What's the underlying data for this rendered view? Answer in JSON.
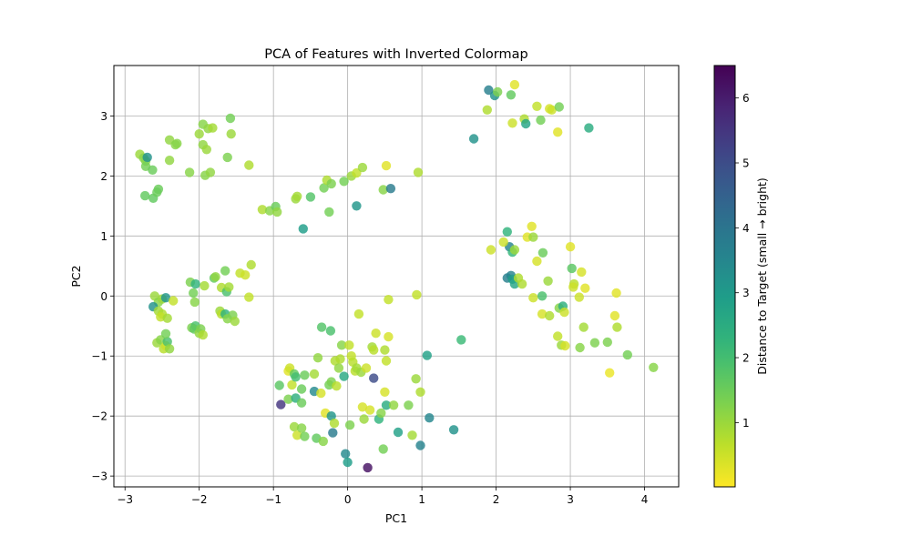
{
  "chart_data": {
    "type": "scatter",
    "title": "PCA of Features with Inverted Colormap",
    "xlabel": "PC1",
    "ylabel": "PC2",
    "xlim": [
      -3.15,
      4.46
    ],
    "ylim": [
      -3.18,
      3.84
    ],
    "xticks": [
      -3,
      -2,
      -1,
      0,
      1,
      2,
      3,
      4
    ],
    "xtick_labels": [
      "−3",
      "−2",
      "−1",
      "0",
      "1",
      "2",
      "3",
      "4"
    ],
    "yticks": [
      -3,
      -2,
      -1,
      0,
      1,
      2,
      3
    ],
    "ytick_labels": [
      "−3",
      "−2",
      "−1",
      "0",
      "1",
      "2",
      "3"
    ],
    "grid": true,
    "colormap": "viridis_r",
    "colorbar": {
      "label": "Distance to Target (small → bright)",
      "range": [
        0.01,
        6.5
      ],
      "ticks": [
        1,
        2,
        3,
        4,
        5,
        6
      ],
      "tick_labels": [
        "1",
        "2",
        "3",
        "4",
        "5",
        "6"
      ]
    },
    "points": [
      [
        -2.8,
        2.36,
        1.0
      ],
      [
        -2.75,
        2.3,
        1.2
      ],
      [
        -2.72,
        2.25,
        1.2
      ],
      [
        -2.7,
        2.31,
        3.2
      ],
      [
        -2.72,
        2.16,
        1.4
      ],
      [
        -2.63,
        2.1,
        1.5
      ],
      [
        -2.73,
        1.67,
        1.6
      ],
      [
        -2.62,
        1.63,
        1.6
      ],
      [
        -2.57,
        1.73,
        1.5
      ],
      [
        -2.55,
        1.78,
        1.5
      ],
      [
        -2.4,
        2.6,
        1.1
      ],
      [
        -2.32,
        2.52,
        1.2
      ],
      [
        -2.3,
        2.54,
        1.2
      ],
      [
        -2.4,
        2.26,
        1.1
      ],
      [
        -2.13,
        2.06,
        1.2
      ],
      [
        -2.0,
        2.7,
        1.0
      ],
      [
        -1.95,
        2.86,
        1.2
      ],
      [
        -1.88,
        2.79,
        1.1
      ],
      [
        -1.82,
        2.8,
        0.9
      ],
      [
        -1.95,
        2.52,
        1.1
      ],
      [
        -1.9,
        2.44,
        1.0
      ],
      [
        -1.92,
        2.01,
        1.2
      ],
      [
        -1.85,
        2.06,
        1.1
      ],
      [
        -1.58,
        2.96,
        1.4
      ],
      [
        -1.57,
        2.7,
        1.0
      ],
      [
        -1.62,
        2.31,
        1.3
      ],
      [
        -1.33,
        2.18,
        0.8
      ],
      [
        -2.6,
        0.0,
        1.0
      ],
      [
        -2.55,
        -0.1,
        1.2
      ],
      [
        -2.62,
        -0.18,
        3.2
      ],
      [
        -2.5,
        -0.05,
        1.0
      ],
      [
        -2.45,
        -0.03,
        3.1
      ],
      [
        -2.55,
        -0.25,
        0.9
      ],
      [
        -2.5,
        -0.3,
        0.8
      ],
      [
        -2.52,
        -0.35,
        0.6
      ],
      [
        -2.43,
        -0.37,
        0.9
      ],
      [
        -2.35,
        -0.08,
        0.6
      ],
      [
        -2.57,
        -0.78,
        1.0
      ],
      [
        -2.52,
        -0.73,
        1.2
      ],
      [
        -2.48,
        -0.88,
        0.7
      ],
      [
        -2.45,
        -0.83,
        0.5
      ],
      [
        -2.43,
        -0.76,
        1.9
      ],
      [
        -2.4,
        -0.88,
        1.1
      ],
      [
        -2.45,
        -0.63,
        1.4
      ],
      [
        -2.12,
        0.23,
        1.3
      ],
      [
        -2.05,
        0.2,
        2.3
      ],
      [
        -2.08,
        0.05,
        1.4
      ],
      [
        -2.06,
        -0.1,
        1.2
      ],
      [
        -2.1,
        -0.53,
        1.3
      ],
      [
        -2.05,
        -0.5,
        1.9
      ],
      [
        -2.07,
        -0.55,
        1.6
      ],
      [
        -2.0,
        -0.62,
        1.1
      ],
      [
        -1.98,
        -0.55,
        1.3
      ],
      [
        -1.95,
        -0.65,
        0.8
      ],
      [
        -1.93,
        0.17,
        0.9
      ],
      [
        -1.8,
        0.3,
        1.6
      ],
      [
        -1.78,
        0.32,
        1.1
      ],
      [
        -1.7,
        0.14,
        0.8
      ],
      [
        -1.65,
        0.42,
        1.4
      ],
      [
        -1.63,
        0.07,
        1.9
      ],
      [
        -1.6,
        0.15,
        0.9
      ],
      [
        -1.72,
        -0.25,
        1.0
      ],
      [
        -1.7,
        -0.3,
        0.7
      ],
      [
        -1.65,
        -0.3,
        2.3
      ],
      [
        -1.62,
        -0.38,
        1.2
      ],
      [
        -1.55,
        -0.32,
        1.3
      ],
      [
        -1.52,
        -0.42,
        1.0
      ],
      [
        -1.45,
        0.38,
        0.6
      ],
      [
        -1.38,
        0.35,
        0.5
      ],
      [
        -1.3,
        0.52,
        0.8
      ],
      [
        -1.33,
        -0.02,
        0.6
      ],
      [
        -1.15,
        1.44,
        0.8
      ],
      [
        -1.05,
        1.42,
        1.2
      ],
      [
        -0.97,
        1.49,
        1.5
      ],
      [
        -0.95,
        1.4,
        1.1
      ],
      [
        -0.7,
        1.62,
        1.0
      ],
      [
        -0.68,
        1.66,
        0.9
      ],
      [
        -0.5,
        1.65,
        1.8
      ],
      [
        -0.6,
        1.12,
        2.9
      ],
      [
        -0.25,
        1.4,
        1.4
      ],
      [
        -0.32,
        1.8,
        1.4
      ],
      [
        -0.28,
        1.93,
        0.8
      ],
      [
        -0.22,
        1.87,
        1.3
      ],
      [
        -0.05,
        1.91,
        1.4
      ],
      [
        0.05,
        2.0,
        1.0
      ],
      [
        0.12,
        2.05,
        0.6
      ],
      [
        0.2,
        2.14,
        1.0
      ],
      [
        0.12,
        1.5,
        3.1
      ],
      [
        0.48,
        1.77,
        1.2
      ],
      [
        0.58,
        1.79,
        3.8
      ],
      [
        0.52,
        2.17,
        0.3
      ],
      [
        0.95,
        2.06,
        0.8
      ],
      [
        1.9,
        3.43,
        3.7
      ],
      [
        1.98,
        3.34,
        3.2
      ],
      [
        2.02,
        3.4,
        1.3
      ],
      [
        2.2,
        3.35,
        1.6
      ],
      [
        2.25,
        3.52,
        0.3
      ],
      [
        2.22,
        2.88,
        0.5
      ],
      [
        1.88,
        3.1,
        0.8
      ],
      [
        1.7,
        2.62,
        3.2
      ],
      [
        2.38,
        2.95,
        0.8
      ],
      [
        2.4,
        2.87,
        2.7
      ],
      [
        2.55,
        3.16,
        0.6
      ],
      [
        2.6,
        2.93,
        1.4
      ],
      [
        2.72,
        3.12,
        0.4
      ],
      [
        2.75,
        3.1,
        0.5
      ],
      [
        2.85,
        3.15,
        1.4
      ],
      [
        2.83,
        2.73,
        0.3
      ],
      [
        3.25,
        2.8,
        2.5
      ],
      [
        2.15,
        1.07,
        2.3
      ],
      [
        2.18,
        0.82,
        3.6
      ],
      [
        1.93,
        0.77,
        0.5
      ],
      [
        2.1,
        0.9,
        0.5
      ],
      [
        2.22,
        0.73,
        2.2
      ],
      [
        2.25,
        0.77,
        1.0
      ],
      [
        2.15,
        0.3,
        3.7
      ],
      [
        2.2,
        0.34,
        3.6
      ],
      [
        2.22,
        0.28,
        2.9
      ],
      [
        2.25,
        0.2,
        2.7
      ],
      [
        2.3,
        0.3,
        0.8
      ],
      [
        2.35,
        0.2,
        0.8
      ],
      [
        2.42,
        0.98,
        0.3
      ],
      [
        2.48,
        1.16,
        0.3
      ],
      [
        2.5,
        0.98,
        1.0
      ],
      [
        2.55,
        0.58,
        0.4
      ],
      [
        2.63,
        0.72,
        1.5
      ],
      [
        2.7,
        0.25,
        1.0
      ],
      [
        2.5,
        -0.03,
        0.5
      ],
      [
        2.62,
        0.0,
        1.9
      ],
      [
        2.62,
        -0.3,
        0.4
      ],
      [
        2.72,
        -0.33,
        0.8
      ],
      [
        2.85,
        -0.2,
        1.2
      ],
      [
        2.9,
        -0.17,
        2.4
      ],
      [
        2.92,
        -0.27,
        0.5
      ],
      [
        2.83,
        -0.67,
        0.6
      ],
      [
        2.88,
        -0.82,
        1.0
      ],
      [
        2.93,
        -0.83,
        0.4
      ],
      [
        3.0,
        0.82,
        0.3
      ],
      [
        3.02,
        0.46,
        1.7
      ],
      [
        3.05,
        0.2,
        0.7
      ],
      [
        3.04,
        0.15,
        0.5
      ],
      [
        3.12,
        -0.02,
        0.5
      ],
      [
        3.15,
        0.4,
        0.4
      ],
      [
        3.2,
        0.13,
        0.3
      ],
      [
        3.18,
        -0.52,
        0.9
      ],
      [
        3.13,
        -0.86,
        1.2
      ],
      [
        3.33,
        -0.78,
        1.3
      ],
      [
        3.5,
        -0.77,
        1.3
      ],
      [
        3.53,
        -1.28,
        0.2
      ],
      [
        3.6,
        -0.33,
        0.3
      ],
      [
        3.62,
        0.05,
        0.3
      ],
      [
        3.63,
        -0.52,
        0.8
      ],
      [
        3.77,
        -0.98,
        1.4
      ],
      [
        4.12,
        -1.19,
        1.2
      ],
      [
        -0.9,
        -1.81,
        5.5
      ],
      [
        -0.92,
        -1.49,
        1.7
      ],
      [
        -0.8,
        -1.72,
        1.3
      ],
      [
        -0.75,
        -1.48,
        0.6
      ],
      [
        -0.8,
        -1.25,
        0.3
      ],
      [
        -0.78,
        -1.2,
        0.5
      ],
      [
        -0.72,
        -1.3,
        1.6
      ],
      [
        -0.7,
        -1.35,
        2.0
      ],
      [
        -0.7,
        -1.7,
        2.4
      ],
      [
        -0.62,
        -1.78,
        1.5
      ],
      [
        -0.62,
        -1.55,
        1.5
      ],
      [
        -0.58,
        -1.32,
        1.5
      ],
      [
        -0.72,
        -2.18,
        1.0
      ],
      [
        -0.68,
        -2.32,
        0.5
      ],
      [
        -0.62,
        -2.2,
        1.2
      ],
      [
        -0.58,
        -2.34,
        1.4
      ],
      [
        -0.45,
        -1.59,
        3.4
      ],
      [
        -0.45,
        -1.3,
        0.9
      ],
      [
        -0.42,
        -2.37,
        1.6
      ],
      [
        -0.4,
        -1.03,
        1.1
      ],
      [
        -0.36,
        -1.62,
        0.4
      ],
      [
        -0.35,
        -0.52,
        1.8
      ],
      [
        -0.33,
        -2.42,
        1.2
      ],
      [
        -0.3,
        -1.95,
        0.3
      ],
      [
        -0.25,
        -1.48,
        1.4
      ],
      [
        -0.22,
        -1.43,
        1.3
      ],
      [
        -0.23,
        -0.58,
        1.9
      ],
      [
        -0.22,
        -2.0,
        3.1
      ],
      [
        -0.2,
        -2.28,
        3.8
      ],
      [
        -0.18,
        -2.12,
        0.8
      ],
      [
        -0.17,
        -1.08,
        0.8
      ],
      [
        -0.15,
        -1.5,
        0.7
      ],
      [
        -0.12,
        -1.2,
        1.1
      ],
      [
        -0.1,
        -1.05,
        0.8
      ],
      [
        -0.08,
        -0.82,
        1.2
      ],
      [
        -0.05,
        -1.34,
        2.6
      ],
      [
        -0.03,
        -2.63,
        3.4
      ],
      [
        0.0,
        -2.77,
        2.9
      ],
      [
        0.02,
        -0.82,
        0.6
      ],
      [
        0.03,
        -2.15,
        1.3
      ],
      [
        0.05,
        -1.0,
        0.6
      ],
      [
        0.07,
        -1.1,
        0.7
      ],
      [
        0.1,
        -1.25,
        0.7
      ],
      [
        0.12,
        -1.2,
        0.9
      ],
      [
        0.15,
        -0.3,
        0.6
      ],
      [
        0.18,
        -1.27,
        1.0
      ],
      [
        0.2,
        -1.85,
        0.4
      ],
      [
        0.22,
        -2.05,
        1.0
      ],
      [
        0.25,
        -1.2,
        0.5
      ],
      [
        0.27,
        -2.86,
        6.2
      ],
      [
        0.3,
        -1.9,
        0.4
      ],
      [
        0.35,
        -1.37,
        5.0
      ],
      [
        0.33,
        -0.85,
        0.9
      ],
      [
        0.35,
        -0.9,
        0.7
      ],
      [
        0.38,
        -0.62,
        0.5
      ],
      [
        0.42,
        -2.05,
        2.3
      ],
      [
        0.45,
        -1.95,
        1.2
      ],
      [
        0.48,
        -2.55,
        1.4
      ],
      [
        0.5,
        -1.6,
        0.4
      ],
      [
        0.52,
        -1.08,
        0.6
      ],
      [
        0.5,
        -0.9,
        0.8
      ],
      [
        0.55,
        -0.68,
        0.4
      ],
      [
        0.55,
        -0.06,
        0.6
      ],
      [
        0.52,
        -1.82,
        2.5
      ],
      [
        0.62,
        -1.82,
        1.1
      ],
      [
        0.68,
        -2.27,
        2.8
      ],
      [
        0.82,
        -1.82,
        1.3
      ],
      [
        0.87,
        -2.32,
        0.9
      ],
      [
        0.92,
        -1.38,
        1.0
      ],
      [
        0.93,
        0.02,
        0.6
      ],
      [
        0.98,
        -1.6,
        0.8
      ],
      [
        0.98,
        -2.49,
        3.6
      ],
      [
        1.07,
        -0.99,
        2.8
      ],
      [
        1.1,
        -2.03,
        3.5
      ],
      [
        1.43,
        -2.23,
        3.2
      ],
      [
        1.53,
        -0.73,
        2.1
      ]
    ]
  }
}
